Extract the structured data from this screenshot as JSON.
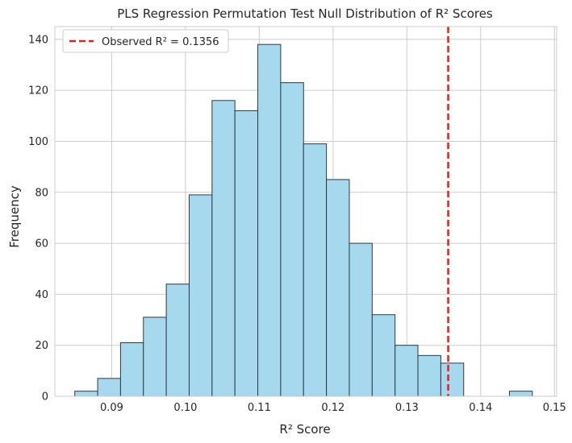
{
  "chart_data": {
    "type": "bar",
    "title": "PLS Regression Permutation Test Null Distribution of R² Scores",
    "xlabel": "R² Score",
    "ylabel": "Frequency",
    "xlim": [
      0.0823,
      0.1503
    ],
    "ylim": [
      0,
      145
    ],
    "grid": true,
    "bin_edges": [
      0.085,
      0.0881,
      0.0912,
      0.0943,
      0.0974,
      0.1005,
      0.1036,
      0.1067,
      0.1098,
      0.1129,
      0.116,
      0.1191,
      0.1222,
      0.1253,
      0.1284,
      0.1315,
      0.1346,
      0.1377,
      0.1408,
      0.1439,
      0.147
    ],
    "values": [
      2,
      7,
      21,
      31,
      44,
      79,
      116,
      112,
      138,
      123,
      99,
      85,
      60,
      32,
      20,
      16,
      13,
      0,
      0,
      2
    ],
    "x_ticks": [
      0.09,
      0.1,
      0.11,
      0.12,
      0.13,
      0.14,
      0.15
    ],
    "x_tick_labels": [
      "0.09",
      "0.10",
      "0.11",
      "0.12",
      "0.13",
      "0.14",
      "0.15"
    ],
    "y_ticks": [
      0,
      20,
      40,
      60,
      80,
      100,
      120,
      140
    ],
    "y_tick_labels": [
      "0",
      "20",
      "40",
      "60",
      "80",
      "100",
      "120",
      "140"
    ],
    "observed": {
      "value": 0.1356,
      "label": "Observed R² = 0.1356",
      "color": "#e8201a"
    },
    "bar_color": "#a6d9ed",
    "bar_edge_color": "#2b3a44",
    "legend": {
      "position": "top-left",
      "entries": [
        "Observed R² = 0.1356"
      ]
    }
  }
}
